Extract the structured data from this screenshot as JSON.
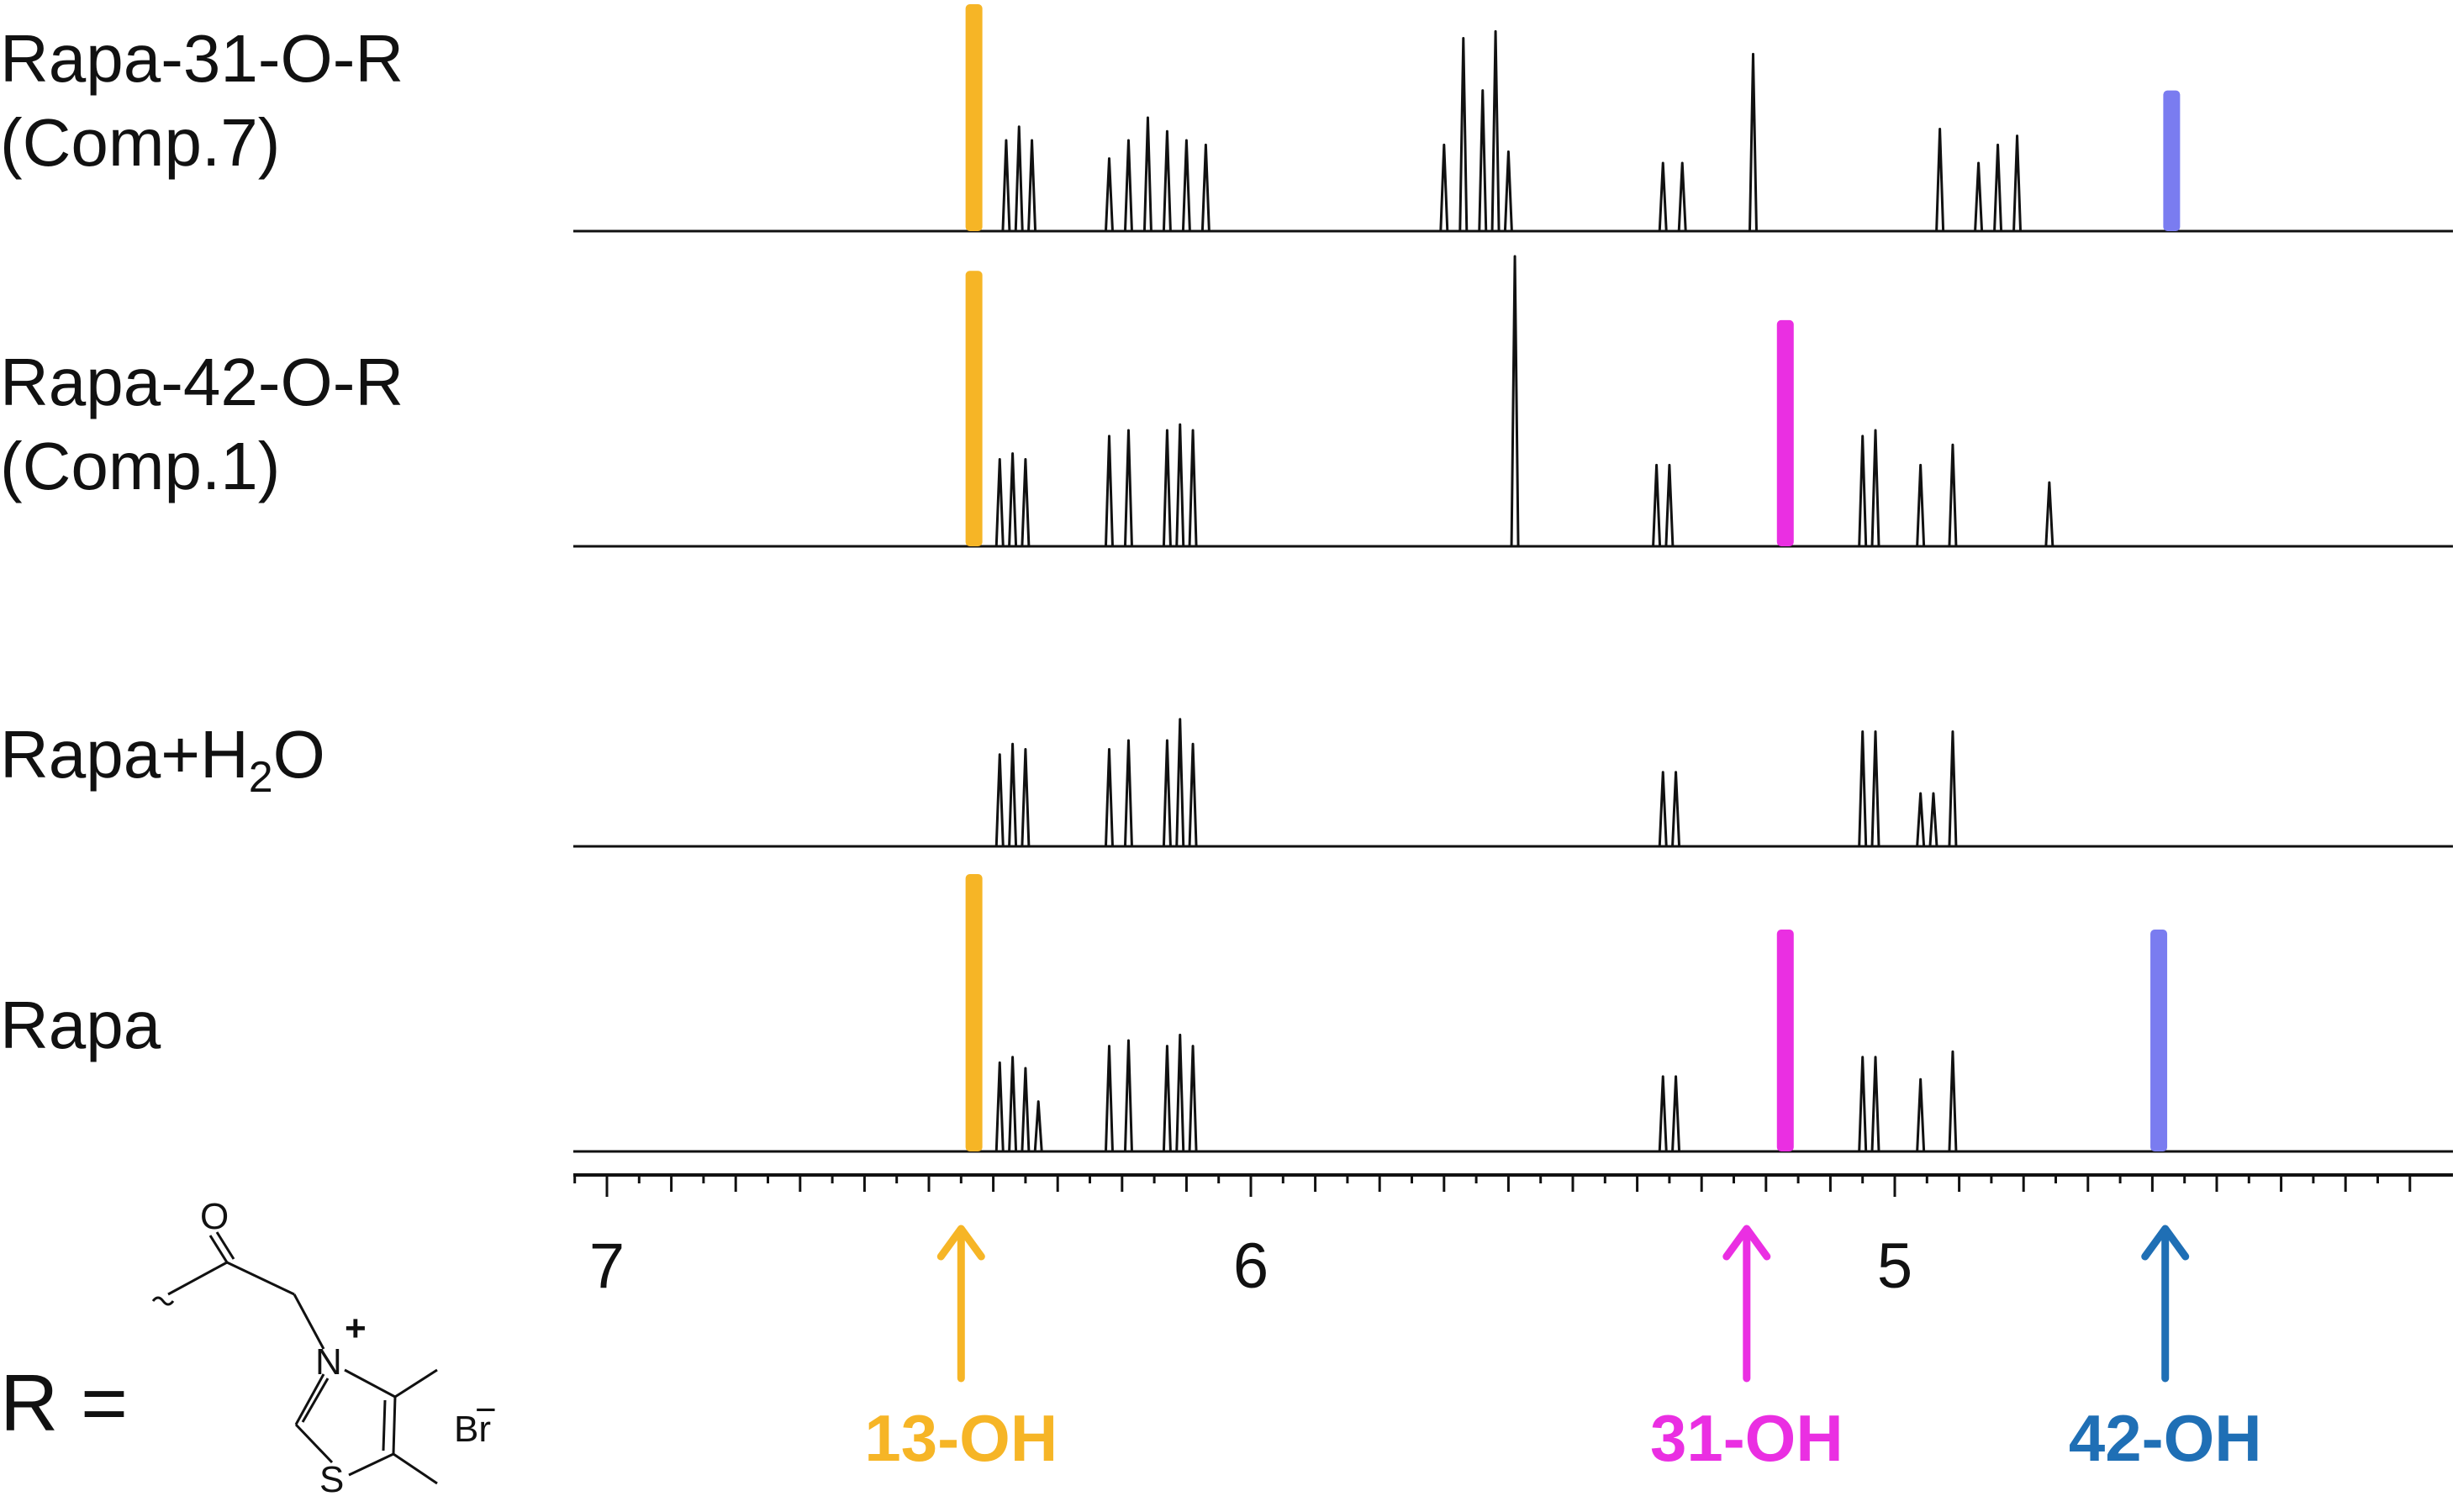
{
  "chart_data": {
    "type": "nmr_spectrum",
    "title": "",
    "xlabel": "",
    "x_unit": "ppm",
    "x_ticks": [
      "7",
      "6",
      "5"
    ],
    "x_range_ppm": [
      7.05,
      4.2
    ],
    "traces": [
      {
        "name": "Rapa-31-O-R",
        "sublabel": "(Comp.7)",
        "peaks": [
          {
            "ppm": 6.43,
            "height": 1.0,
            "color": "#f6b526",
            "label": "13-OH"
          },
          {
            "ppm": 6.38,
            "height": 0.4
          },
          {
            "ppm": 6.36,
            "height": 0.46
          },
          {
            "ppm": 6.34,
            "height": 0.4
          },
          {
            "ppm": 6.22,
            "height": 0.32
          },
          {
            "ppm": 6.19,
            "height": 0.4
          },
          {
            "ppm": 6.16,
            "height": 0.5
          },
          {
            "ppm": 6.13,
            "height": 0.44
          },
          {
            "ppm": 6.1,
            "height": 0.4
          },
          {
            "ppm": 6.07,
            "height": 0.38
          },
          {
            "ppm": 5.7,
            "height": 0.38
          },
          {
            "ppm": 5.67,
            "height": 0.85
          },
          {
            "ppm": 5.64,
            "height": 0.62
          },
          {
            "ppm": 5.62,
            "height": 0.88
          },
          {
            "ppm": 5.6,
            "height": 0.35
          },
          {
            "ppm": 5.36,
            "height": 0.3
          },
          {
            "ppm": 5.33,
            "height": 0.3
          },
          {
            "ppm": 5.22,
            "height": 0.78
          },
          {
            "ppm": 4.93,
            "height": 0.45
          },
          {
            "ppm": 4.87,
            "height": 0.3
          },
          {
            "ppm": 4.84,
            "height": 0.38
          },
          {
            "ppm": 4.81,
            "height": 0.42
          },
          {
            "ppm": 4.57,
            "height": 0.62,
            "color": "#7a7cf0",
            "label": "42-OH"
          }
        ]
      },
      {
        "name": "Rapa-42-O-R",
        "sublabel": "(Comp.1)",
        "peaks": [
          {
            "ppm": 6.43,
            "height": 0.95,
            "color": "#f6b526",
            "label": "13-OH"
          },
          {
            "ppm": 6.39,
            "height": 0.3
          },
          {
            "ppm": 6.37,
            "height": 0.32
          },
          {
            "ppm": 6.35,
            "height": 0.3
          },
          {
            "ppm": 6.22,
            "height": 0.38
          },
          {
            "ppm": 6.19,
            "height": 0.4
          },
          {
            "ppm": 6.13,
            "height": 0.4
          },
          {
            "ppm": 6.11,
            "height": 0.42
          },
          {
            "ppm": 6.09,
            "height": 0.4
          },
          {
            "ppm": 5.59,
            "height": 1.0
          },
          {
            "ppm": 5.37,
            "height": 0.28
          },
          {
            "ppm": 5.35,
            "height": 0.28
          },
          {
            "ppm": 5.17,
            "height": 0.78,
            "color": "#ea2fe2",
            "label": "31-OH"
          },
          {
            "ppm": 5.05,
            "height": 0.38
          },
          {
            "ppm": 5.03,
            "height": 0.4
          },
          {
            "ppm": 4.96,
            "height": 0.28
          },
          {
            "ppm": 4.91,
            "height": 0.35
          },
          {
            "ppm": 4.76,
            "height": 0.22
          }
        ]
      },
      {
        "name": "Rapa+H2O",
        "label_main": "Rapa+H",
        "label_sub": "2",
        "label_end": "O",
        "peaks": [
          {
            "ppm": 6.39,
            "height": 0.52
          },
          {
            "ppm": 6.37,
            "height": 0.58
          },
          {
            "ppm": 6.35,
            "height": 0.55
          },
          {
            "ppm": 6.22,
            "height": 0.55
          },
          {
            "ppm": 6.19,
            "height": 0.6
          },
          {
            "ppm": 6.13,
            "height": 0.6
          },
          {
            "ppm": 6.11,
            "height": 0.72
          },
          {
            "ppm": 6.09,
            "height": 0.58
          },
          {
            "ppm": 5.36,
            "height": 0.42
          },
          {
            "ppm": 5.34,
            "height": 0.42
          },
          {
            "ppm": 5.05,
            "height": 0.65
          },
          {
            "ppm": 5.03,
            "height": 0.65
          },
          {
            "ppm": 4.96,
            "height": 0.3
          },
          {
            "ppm": 4.94,
            "height": 0.3
          },
          {
            "ppm": 4.91,
            "height": 0.65
          }
        ]
      },
      {
        "name": "Rapa",
        "peaks": [
          {
            "ppm": 6.43,
            "height": 1.0,
            "color": "#f6b526",
            "label": "13-OH"
          },
          {
            "ppm": 6.39,
            "height": 0.32
          },
          {
            "ppm": 6.37,
            "height": 0.34
          },
          {
            "ppm": 6.35,
            "height": 0.3
          },
          {
            "ppm": 6.33,
            "height": 0.18
          },
          {
            "ppm": 6.22,
            "height": 0.38
          },
          {
            "ppm": 6.19,
            "height": 0.4
          },
          {
            "ppm": 6.13,
            "height": 0.38
          },
          {
            "ppm": 6.11,
            "height": 0.42
          },
          {
            "ppm": 6.09,
            "height": 0.38
          },
          {
            "ppm": 5.36,
            "height": 0.27
          },
          {
            "ppm": 5.34,
            "height": 0.27
          },
          {
            "ppm": 5.17,
            "height": 0.8,
            "color": "#ea2fe2",
            "label": "31-OH"
          },
          {
            "ppm": 5.05,
            "height": 0.34
          },
          {
            "ppm": 5.03,
            "height": 0.34
          },
          {
            "ppm": 4.96,
            "height": 0.26
          },
          {
            "ppm": 4.91,
            "height": 0.36
          },
          {
            "ppm": 4.59,
            "height": 0.8,
            "color": "#7a7cf0",
            "label": "42-OH"
          }
        ]
      }
    ],
    "arrows": [
      {
        "label": "13-OH",
        "ppm": 6.45,
        "color": "#f6b526"
      },
      {
        "label": "31-OH",
        "ppm": 5.23,
        "color": "#ea2fe2"
      },
      {
        "label": "42-OH",
        "ppm": 4.58,
        "color": "#1f6fb5"
      }
    ]
  },
  "structure": {
    "r_label": "R =",
    "atoms": {
      "oxygen": "O",
      "nitrogen": "N",
      "charge": "+",
      "sulfur": "S"
    },
    "counterion": "Br",
    "counterion_charge": "−"
  },
  "colors": {
    "line": "#111111",
    "oh13": "#f6b526",
    "oh31": "#ea2fe2",
    "oh42_peak": "#7a7cf0",
    "oh42_arrow": "#1f6fb5"
  }
}
